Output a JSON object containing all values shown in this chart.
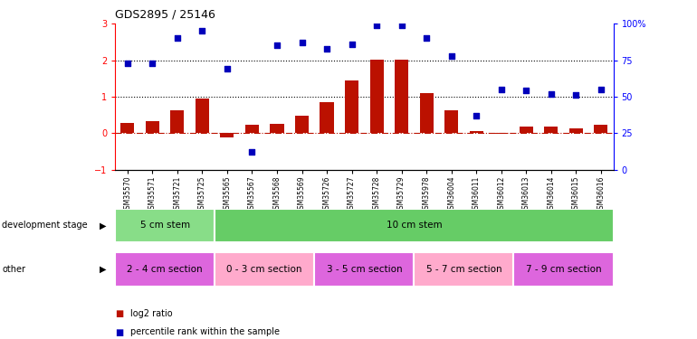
{
  "title": "GDS2895 / 25146",
  "samples": [
    "GSM35570",
    "GSM35571",
    "GSM35721",
    "GSM35725",
    "GSM35565",
    "GSM35567",
    "GSM35568",
    "GSM35569",
    "GSM35726",
    "GSM35727",
    "GSM35728",
    "GSM35729",
    "GSM35978",
    "GSM36004",
    "GSM36011",
    "GSM36012",
    "GSM36013",
    "GSM36014",
    "GSM36015",
    "GSM36016"
  ],
  "log2_ratio": [
    0.28,
    0.32,
    0.62,
    0.95,
    -0.12,
    0.22,
    0.25,
    0.48,
    0.85,
    1.45,
    2.02,
    2.02,
    1.1,
    0.62,
    0.05,
    -0.02,
    0.18,
    0.18,
    0.14,
    0.22
  ],
  "pct_rank_right": [
    73,
    73,
    90,
    95,
    69,
    12,
    85,
    87,
    83,
    86,
    99,
    99,
    90,
    78,
    37,
    55,
    54,
    52,
    51,
    55
  ],
  "dev_stage_groups": [
    {
      "label": "5 cm stem",
      "start": 0,
      "end": 4,
      "color": "#88DD88"
    },
    {
      "label": "10 cm stem",
      "start": 4,
      "end": 20,
      "color": "#66CC66"
    }
  ],
  "other_groups": [
    {
      "label": "2 - 4 cm section",
      "start": 0,
      "end": 4,
      "color": "#DD66DD"
    },
    {
      "label": "0 - 3 cm section",
      "start": 4,
      "end": 8,
      "color": "#FFAACC"
    },
    {
      "label": "3 - 5 cm section",
      "start": 8,
      "end": 12,
      "color": "#DD66DD"
    },
    {
      "label": "5 - 7 cm section",
      "start": 12,
      "end": 16,
      "color": "#FFAACC"
    },
    {
      "label": "7 - 9 cm section",
      "start": 16,
      "end": 20,
      "color": "#DD66DD"
    }
  ],
  "left_ylim": [
    -1,
    3
  ],
  "right_ylim": [
    0,
    100
  ],
  "left_yticks": [
    -1,
    0,
    1,
    2,
    3
  ],
  "right_yticks": [
    0,
    25,
    50,
    75,
    100
  ],
  "right_yticklabels": [
    "0",
    "25",
    "50",
    "75",
    "100%"
  ],
  "hlines": [
    2.0,
    1.0
  ],
  "bar_color": "#BB1100",
  "scatter_color": "#0000BB",
  "zero_line_color": "#BB1100",
  "bg_color": "#ffffff",
  "legend": [
    {
      "color": "#BB1100",
      "label": "log2 ratio"
    },
    {
      "color": "#0000BB",
      "label": "percentile rank within the sample"
    }
  ]
}
